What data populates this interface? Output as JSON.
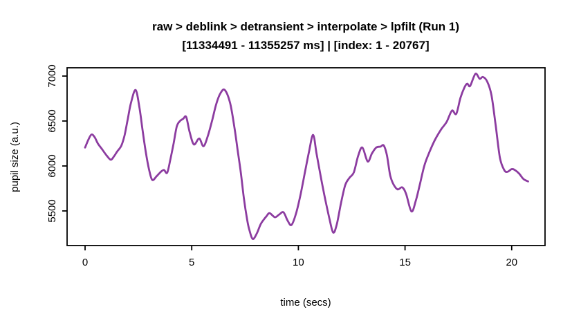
{
  "figure": {
    "background": "#ffffff",
    "frame_color": "#000000",
    "text_color": "#000000"
  },
  "chart_data": {
    "type": "line",
    "title": "raw > deblink > detransient > interpolate > lpfilt (Run 1)",
    "subtitle": "[11334491 - 11355257 ms] | [index: 1 - 20767]",
    "xlabel": "time (secs)",
    "ylabel": "pupil size (a.u.)",
    "x_ticks": [
      0,
      5,
      10,
      15,
      20
    ],
    "y_ticks": [
      5500,
      6000,
      6500,
      7000
    ],
    "xlim": [
      -0.843,
      21.563
    ],
    "ylim": [
      5115,
      7092
    ],
    "grid": false,
    "legend": "none",
    "line_color": "#8c3ca0",
    "series": [
      {
        "name": "pupil size (a.u.)",
        "x": [
          0.0,
          0.15,
          0.3,
          0.45,
          0.6,
          0.8,
          1.0,
          1.2,
          1.35,
          1.5,
          1.7,
          1.85,
          2.0,
          2.15,
          2.37,
          2.55,
          2.7,
          2.85,
          3.0,
          3.15,
          3.35,
          3.55,
          3.7,
          3.85,
          4.0,
          4.15,
          4.3,
          4.45,
          4.6,
          4.74,
          4.9,
          5.1,
          5.35,
          5.55,
          5.75,
          5.95,
          6.15,
          6.35,
          6.55,
          6.8,
          7.0,
          7.15,
          7.3,
          7.45,
          7.6,
          7.7,
          7.86,
          8.05,
          8.25,
          8.5,
          8.65,
          8.9,
          9.1,
          9.3,
          9.5,
          9.68,
          9.9,
          10.1,
          10.3,
          10.5,
          10.69,
          10.85,
          11.05,
          11.25,
          11.45,
          11.63,
          11.8,
          12.0,
          12.2,
          12.4,
          12.6,
          12.8,
          13.0,
          13.25,
          13.45,
          13.65,
          13.85,
          14.0,
          14.15,
          14.3,
          14.45,
          14.65,
          14.87,
          15.05,
          15.3,
          15.5,
          15.7,
          15.9,
          16.1,
          16.4,
          16.7,
          16.95,
          17.2,
          17.4,
          17.6,
          17.8,
          17.92,
          18.05,
          18.3,
          18.5,
          18.65,
          18.85,
          19.05,
          19.25,
          19.45,
          19.65,
          19.8,
          20.0,
          20.15,
          20.35,
          20.55,
          20.77
        ],
        "y": [
          6205,
          6290,
          6350,
          6320,
          6250,
          6185,
          6120,
          6070,
          6105,
          6160,
          6225,
          6340,
          6520,
          6700,
          6845,
          6650,
          6390,
          6150,
          5960,
          5845,
          5885,
          5935,
          5955,
          5925,
          6075,
          6250,
          6440,
          6500,
          6525,
          6545,
          6380,
          6240,
          6305,
          6220,
          6330,
          6500,
          6690,
          6810,
          6845,
          6700,
          6430,
          6180,
          5930,
          5630,
          5400,
          5290,
          5188,
          5250,
          5360,
          5440,
          5475,
          5430,
          5460,
          5485,
          5390,
          5345,
          5480,
          5680,
          5920,
          6160,
          6345,
          6140,
          5880,
          5640,
          5420,
          5260,
          5350,
          5590,
          5790,
          5870,
          5930,
          6110,
          6205,
          6050,
          6140,
          6205,
          6215,
          6228,
          6120,
          5900,
          5800,
          5740,
          5762,
          5690,
          5495,
          5610,
          5800,
          6000,
          6130,
          6290,
          6410,
          6490,
          6615,
          6580,
          6760,
          6880,
          6915,
          6890,
          7025,
          6970,
          6990,
          6940,
          6790,
          6450,
          6090,
          5955,
          5935,
          5965,
          5955,
          5915,
          5855,
          5828
        ]
      }
    ]
  }
}
